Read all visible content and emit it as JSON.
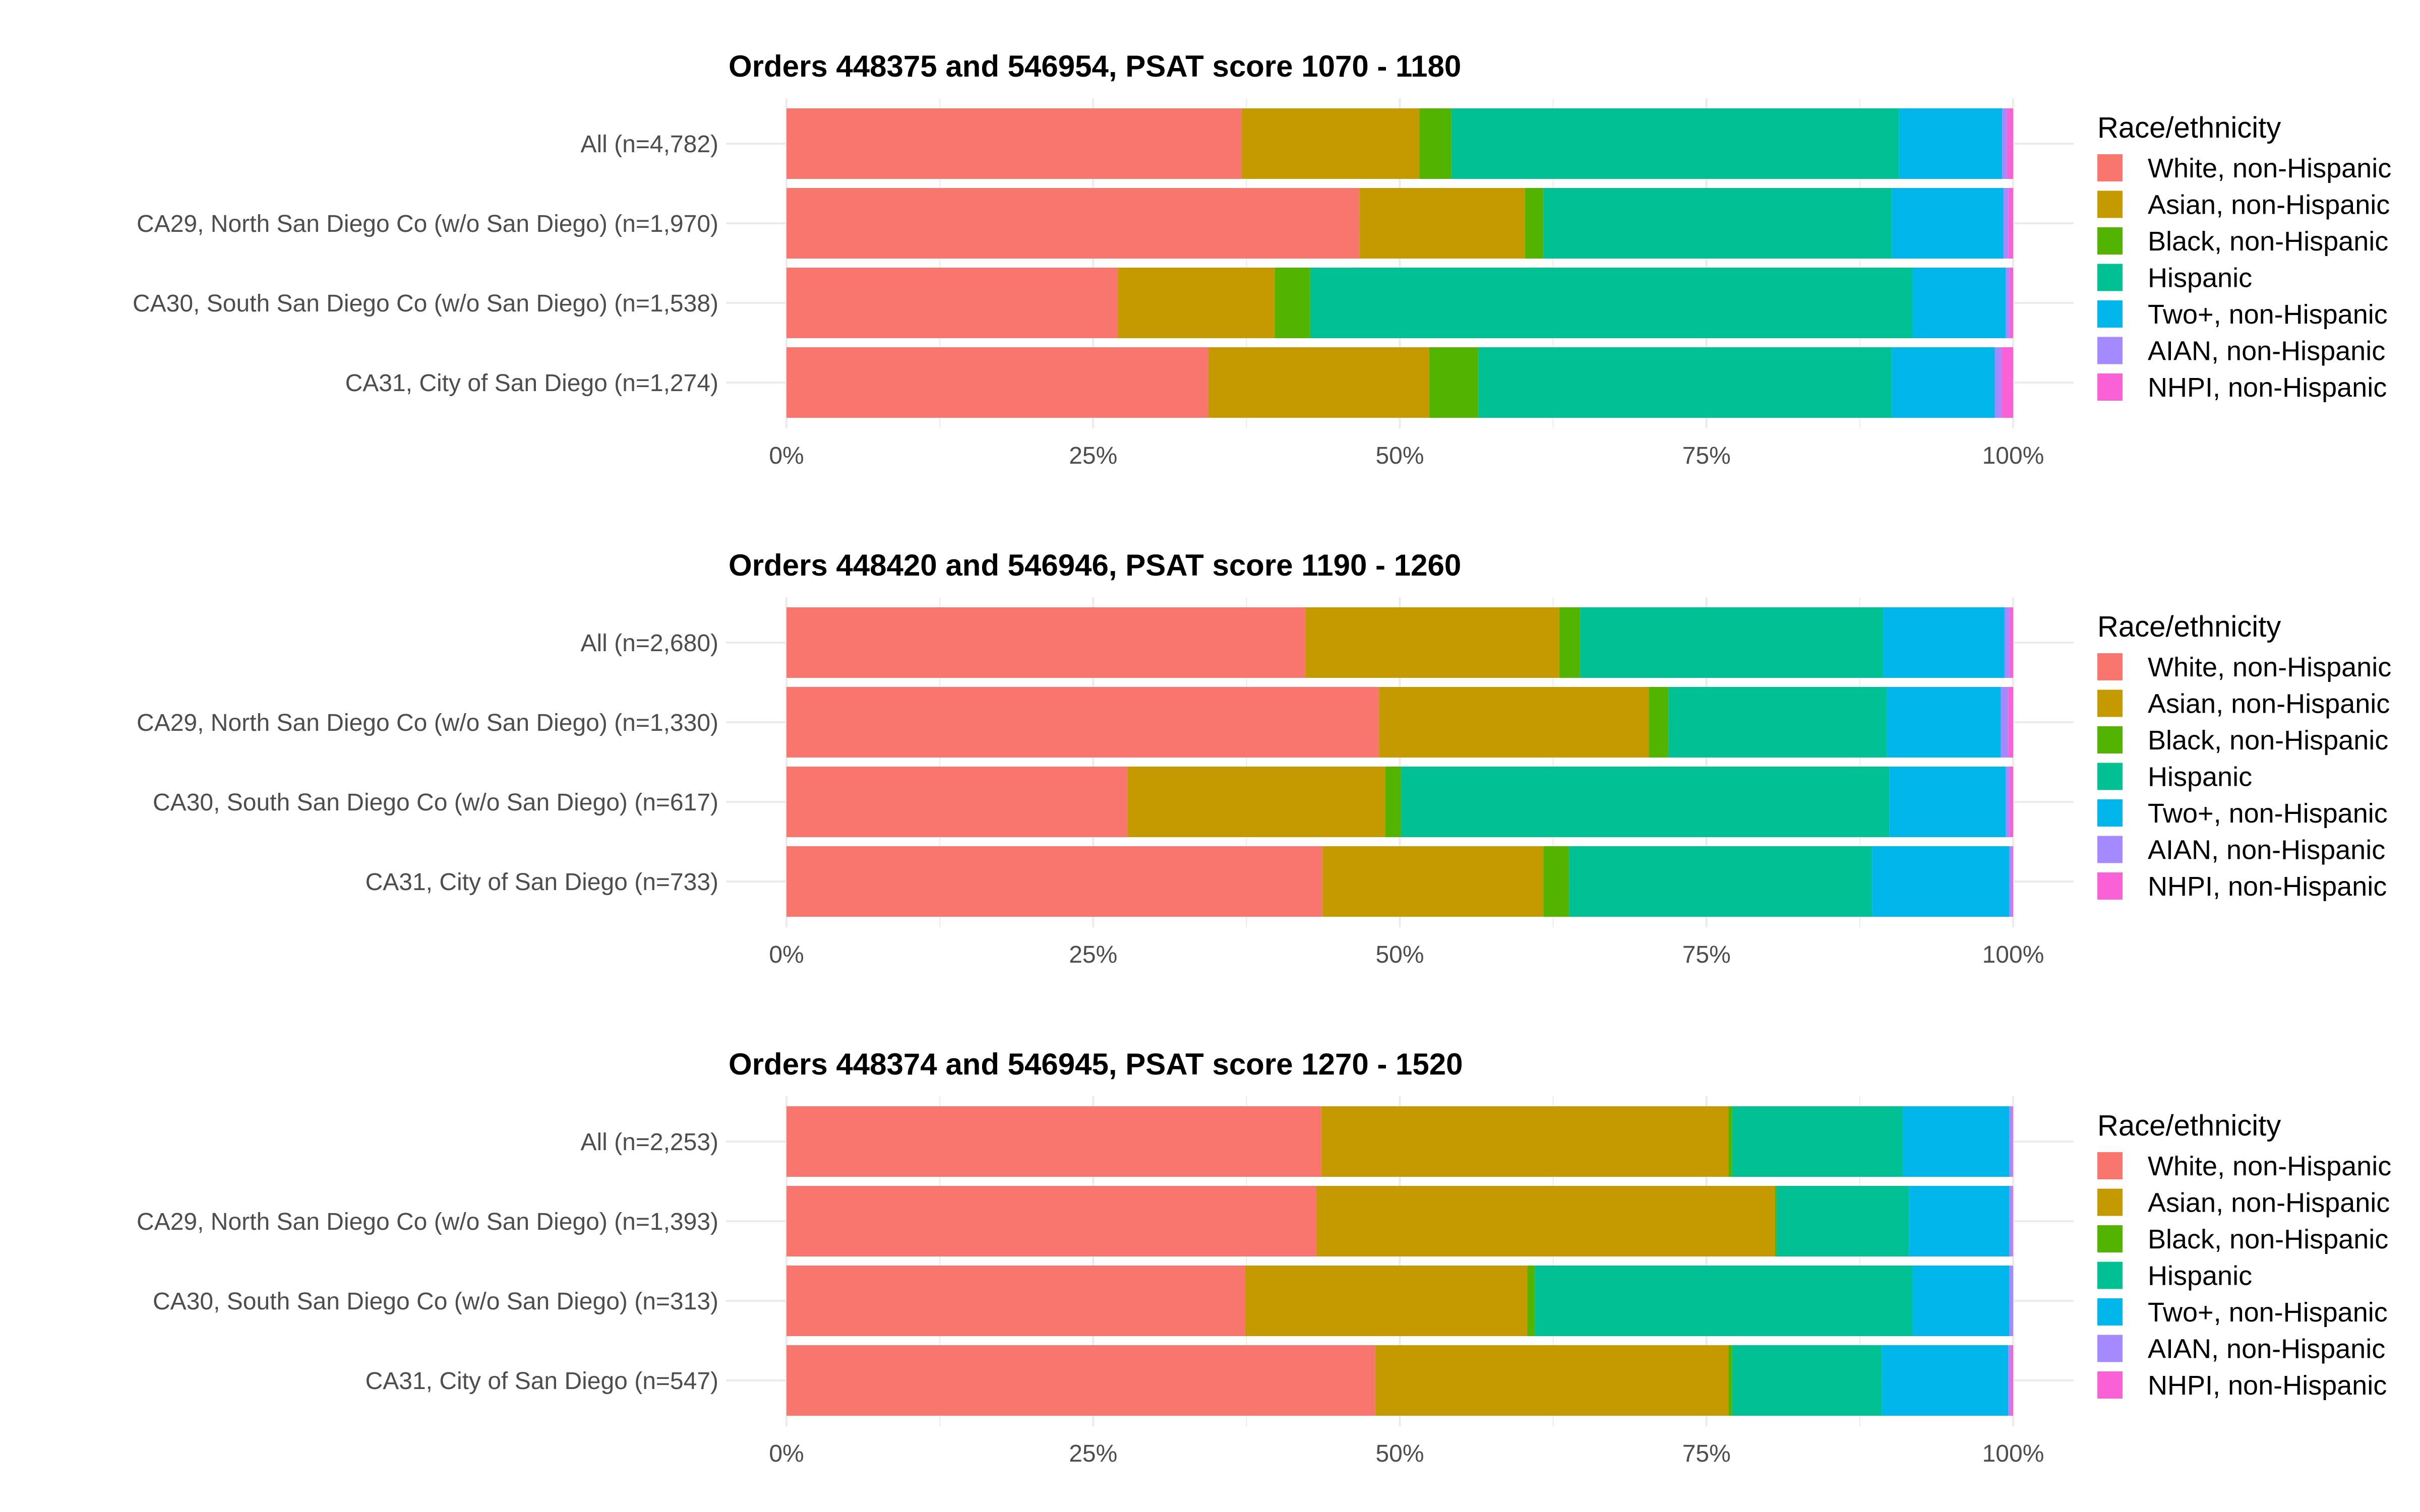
{
  "chart_data": {
    "type": "bar",
    "orientation": "horizontal",
    "stacked": "percent",
    "legend": {
      "title": "Race/ethnicity",
      "placement": "right",
      "entries": [
        {
          "name": "White, non-Hispanic",
          "color": "#F8766D"
        },
        {
          "name": "Asian, non-Hispanic",
          "color": "#C49A00"
        },
        {
          "name": "Black, non-Hispanic",
          "color": "#53B400"
        },
        {
          "name": "Hispanic",
          "color": "#00C094"
        },
        {
          "name": "Two+, non-Hispanic",
          "color": "#00B6EB"
        },
        {
          "name": "AIAN, non-Hispanic",
          "color": "#A58AFF"
        },
        {
          "name": "NHPI, non-Hispanic",
          "color": "#FB61D7"
        }
      ]
    },
    "x_ticks": [
      "0%",
      "25%",
      "50%",
      "75%",
      "100%"
    ],
    "xlim": [
      0,
      100
    ],
    "grid": true,
    "panels": [
      {
        "title": "Orders 448375 and 546954, PSAT score 1070 - 1180",
        "categories": [
          "All (n=4,782)",
          "CA29, North San Diego Co (w/o San Diego) (n=1,970)",
          "CA30, South San Diego Co (w/o San Diego) (n=1,538)",
          "CA31, City of San Diego (n=1,274)"
        ],
        "values_pct": [
          [
            37.1,
            14.5,
            2.6,
            36.5,
            8.4,
            0.4,
            0.5
          ],
          [
            46.7,
            13.5,
            1.5,
            28.4,
            9.1,
            0.4,
            0.4
          ],
          [
            27.0,
            12.8,
            2.9,
            49.1,
            7.6,
            0.3,
            0.3
          ],
          [
            34.4,
            18.0,
            4.0,
            33.7,
            8.4,
            0.55,
            0.95
          ]
        ]
      },
      {
        "title": "Orders 448420 and 546946, PSAT score 1190 - 1260",
        "categories": [
          "All (n=2,680)",
          "CA29, North San Diego Co (w/o San Diego) (n=1,330)",
          "CA30, South San Diego Co (w/o San Diego) (n=617)",
          "CA31, City of San Diego (n=733)"
        ],
        "values_pct": [
          [
            42.3,
            20.7,
            1.7,
            24.7,
            9.9,
            0.4,
            0.3
          ],
          [
            48.3,
            22.0,
            1.6,
            17.8,
            9.3,
            0.6,
            0.4
          ],
          [
            27.8,
            21.0,
            1.3,
            39.8,
            9.5,
            0.3,
            0.3
          ],
          [
            43.7,
            18.0,
            2.1,
            24.7,
            11.2,
            0.2,
            0.1
          ]
        ]
      },
      {
        "title": "Orders 448374 and 546945, PSAT score 1270 - 1520",
        "categories": [
          "All (n=2,253)",
          "CA29, North San Diego Co (w/o San Diego) (n=1,393)",
          "CA30, South San Diego Co (w/o San Diego) (n=313)",
          "CA31, City of San Diego (n=547)"
        ],
        "values_pct": [
          [
            43.6,
            33.2,
            0.3,
            13.9,
            8.7,
            0.25,
            0.05
          ],
          [
            43.2,
            37.4,
            0.1,
            10.8,
            8.2,
            0.25,
            0.05
          ],
          [
            37.4,
            23.0,
            0.6,
            30.8,
            7.9,
            0.3,
            0.0
          ],
          [
            48.0,
            28.8,
            0.3,
            12.2,
            10.3,
            0.2,
            0.2
          ]
        ]
      }
    ]
  }
}
